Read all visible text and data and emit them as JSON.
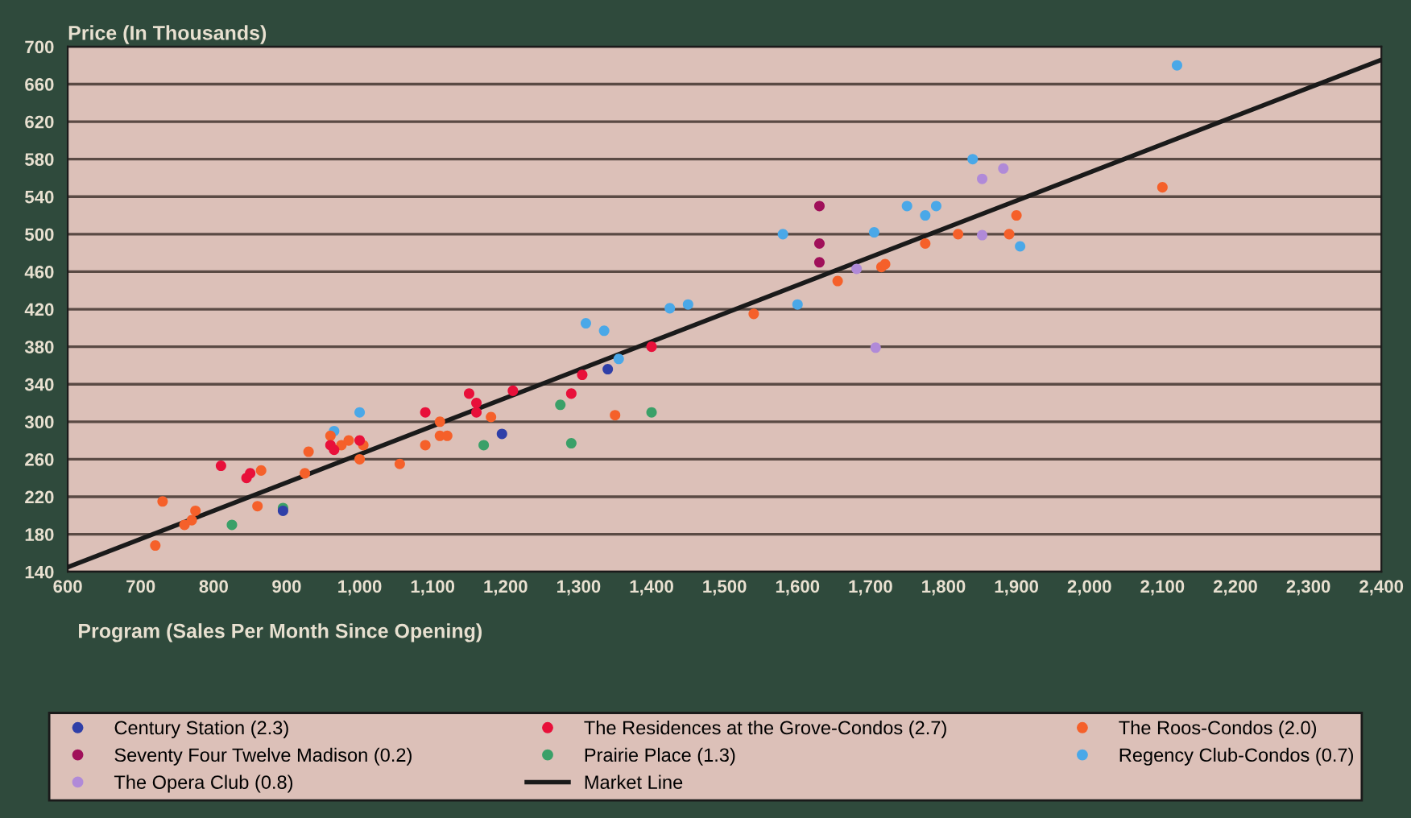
{
  "chart_data": {
    "type": "scatter",
    "ylabel": "Price (In Thousands)",
    "legend_title": "Program (Sales Per Month Since Opening)",
    "legend": "bottom",
    "grid": "y",
    "marker": "circle",
    "xlim": [
      600,
      2400
    ],
    "ylim": [
      140,
      700
    ],
    "xticks": [
      600,
      700,
      800,
      900,
      {
        "value": 1000,
        "label": "1,000"
      },
      {
        "value": 1100,
        "label": "1,100"
      },
      {
        "value": 1200,
        "label": "1,200"
      },
      {
        "value": 1300,
        "label": "1,300"
      },
      {
        "value": 1400,
        "label": "1,400"
      },
      {
        "value": 1500,
        "label": "1,500"
      },
      {
        "value": 1600,
        "label": "1,600"
      },
      {
        "value": 1700,
        "label": "1,700"
      },
      {
        "value": 1800,
        "label": "1,800"
      },
      {
        "value": 1900,
        "label": "1,900"
      },
      {
        "value": 2000,
        "label": "2,000"
      },
      {
        "value": 2100,
        "label": "2,100"
      },
      {
        "value": 2200,
        "label": "2,200"
      },
      {
        "value": 2300,
        "label": "2,300"
      },
      {
        "value": 2400,
        "label": "2,400"
      }
    ],
    "yticks": [
      140,
      180,
      220,
      260,
      300,
      340,
      380,
      420,
      460,
      500,
      540,
      580,
      620,
      660,
      700
    ],
    "series": [
      {
        "name": "Century Station (2.3)",
        "color": "#2f3fa8",
        "x": [
          1195,
          1340,
          895
        ],
        "values": [
          287,
          356,
          205
        ]
      },
      {
        "name": "The Residences at the Grove-Condos (2.7)",
        "color": "#e8103a",
        "x": [
          810,
          845,
          850,
          960,
          965,
          1000,
          1090,
          1150,
          1160,
          1160,
          1210,
          1290,
          1305,
          1400
        ],
        "values": [
          253,
          240,
          245,
          275,
          270,
          280,
          310,
          330,
          320,
          310,
          333,
          330,
          350,
          380
        ]
      },
      {
        "name": "The Roos-Condos (2.0)",
        "color": "#f5602a",
        "x": [
          720,
          730,
          760,
          770,
          775,
          860,
          865,
          925,
          930,
          960,
          975,
          985,
          1000,
          1005,
          1055,
          1090,
          1110,
          1120,
          1110,
          1180,
          1350,
          1540,
          1655,
          1715,
          1775,
          1820,
          1890,
          1900,
          2100,
          1720
        ],
        "values": [
          168,
          215,
          190,
          195,
          205,
          210,
          248,
          245,
          268,
          285,
          275,
          280,
          260,
          275,
          255,
          275,
          285,
          285,
          300,
          305,
          307,
          415,
          450,
          465,
          490,
          500,
          500,
          520,
          550,
          468
        ]
      },
      {
        "name": "Seventy Four Twelve Madison (0.2)",
        "color": "#a0105a",
        "x": [
          1630,
          1630,
          1630
        ],
        "values": [
          530,
          490,
          470
        ]
      },
      {
        "name": "Prairie Place (1.3)",
        "color": "#3aa068",
        "x": [
          825,
          895,
          1170,
          1275,
          1290,
          1400
        ],
        "values": [
          190,
          208,
          275,
          318,
          277,
          310
        ]
      },
      {
        "name": "Regency Club-Condos (0.7)",
        "color": "#4aa8e8",
        "x": [
          965,
          1000,
          1310,
          1335,
          1355,
          1425,
          1450,
          1580,
          1600,
          1705,
          1750,
          1775,
          1790,
          1840,
          1905,
          2120
        ],
        "values": [
          290,
          310,
          405,
          397,
          367,
          421,
          425,
          500,
          425,
          502,
          530,
          520,
          530,
          580,
          487,
          680
        ]
      },
      {
        "name": "The Opera Club (0.8)",
        "color": "#b08ad8",
        "x": [
          1681,
          1707,
          1853,
          1853,
          1882
        ],
        "values": [
          463,
          379,
          499,
          559,
          570
        ]
      },
      {
        "name": "Market Line",
        "type": "line",
        "marker": "none",
        "color": "#1a1a1a",
        "x": [
          600,
          2400
        ],
        "values": [
          145,
          686
        ]
      }
    ]
  }
}
